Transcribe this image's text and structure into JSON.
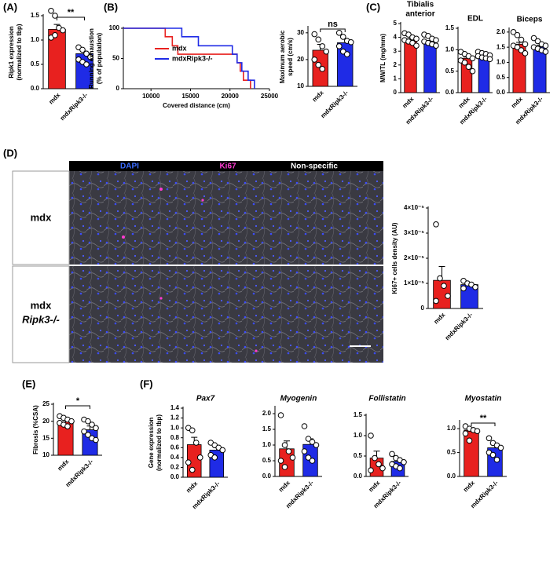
{
  "panels": [
    "(A)",
    "(B)",
    "(C)",
    "(D)",
    "(E)",
    "(F)"
  ],
  "micrograph": {
    "channels": [
      "DAPI",
      "Ki67",
      "Non-specific"
    ],
    "rows": [
      [
        "mdx"
      ],
      [
        "mdx",
        "Ripk3-/-"
      ]
    ]
  },
  "chart_data": [
    {
      "type": "bar",
      "ylabel": [
        "Ripk1 expression",
        "(normalized to tbp)"
      ],
      "categories": [
        "mdx",
        "mdxRipk3-/-"
      ],
      "colors": [
        "#e8211f",
        "#1f2be6"
      ],
      "values": [
        1.22,
        0.72
      ],
      "errors": [
        0.1,
        0.05
      ],
      "points": [
        [
          1.6,
          1.5,
          1.25,
          1.2,
          1.05,
          1.1
        ],
        [
          0.85,
          0.8,
          0.72,
          0.65,
          0.6,
          0.55,
          0.5
        ]
      ],
      "ylim": [
        0,
        1.5
      ],
      "yticks": [
        {
          "value": 0,
          "label": "0.0"
        },
        0.5,
        {
          "value": 1,
          "label": "1.0"
        },
        1.5
      ],
      "significance": "**"
    },
    {
      "type": "line",
      "ylabel": [
        "Running exhaustion",
        "(% of population)"
      ],
      "xlabel": "Covered distance (cm)",
      "xlim": [
        6500,
        25000
      ],
      "xticks": [
        10000,
        15000,
        20000,
        25000
      ],
      "ylim": [
        0,
        100
      ],
      "yticks": [
        0,
        50,
        100
      ],
      "series": [
        {
          "name": "mdx",
          "color": "#e8211f",
          "x": [
            6500,
            11800,
            11800,
            12700,
            12700,
            13400,
            13400,
            20900,
            20900,
            21300,
            21300,
            21700,
            21700,
            22600,
            22600
          ],
          "values": [
            100,
            100,
            86,
            86,
            71,
            71,
            57,
            57,
            43,
            43,
            29,
            29,
            14,
            14,
            0
          ]
        },
        {
          "name": "mdxRipk3-/-",
          "color": "#1f2be6",
          "x": [
            6500,
            13900,
            13900,
            16000,
            16000,
            20300,
            20300,
            20900,
            20900,
            21500,
            21500,
            22300,
            22300,
            23100,
            23100
          ],
          "values": [
            100,
            100,
            86,
            86,
            71,
            71,
            57,
            57,
            43,
            43,
            29,
            29,
            14,
            14,
            0
          ]
        }
      ]
    },
    {
      "type": "bar",
      "ylabel": [
        "Maximum aerobic",
        "speed (cm/s)"
      ],
      "categories": [
        "mdx",
        "mdxRipk3-/-"
      ],
      "colors": [
        "#e8211f",
        "#1f2be6"
      ],
      "values": [
        23.5,
        26.3
      ],
      "errors": [
        2.2,
        1.3
      ],
      "points": [
        [
          29.5,
          27.5,
          25,
          23,
          20,
          18,
          16.5
        ],
        [
          30,
          28.5,
          27,
          26.5,
          25,
          23,
          22
        ]
      ],
      "ylim": [
        10,
        32
      ],
      "yticks": [
        10,
        20,
        30
      ],
      "significance": "ns"
    },
    {
      "type": "bar",
      "title": [
        "Tibialis",
        "anterior"
      ],
      "ylabel": [
        "MW/TL (mg/mm)"
      ],
      "categories": [
        "mdx",
        "mdxRipk3-/-"
      ],
      "colors": [
        "#e8211f",
        "#1f2be6"
      ],
      "values": [
        3.8,
        3.7
      ],
      "errors": [
        0.1,
        0.08
      ],
      "points": [
        [
          4.3,
          4.2,
          4.0,
          3.9,
          3.8,
          3.7,
          3.6,
          3.4
        ],
        [
          4.2,
          4.1,
          3.9,
          3.8,
          3.7,
          3.6,
          3.5,
          3.4
        ]
      ],
      "ylim": [
        0,
        5
      ],
      "yticks": [
        0,
        1,
        2,
        3,
        4,
        5
      ]
    },
    {
      "type": "bar",
      "title": [
        "EDL"
      ],
      "categories": [
        "mdx",
        "mdxRipk3-/-"
      ],
      "colors": [
        "#e8211f",
        "#1f2be6"
      ],
      "values": [
        0.8,
        0.86
      ],
      "errors": [
        0.03,
        0.03
      ],
      "points": [
        [
          0.95,
          0.9,
          0.85,
          0.8,
          0.75,
          0.7,
          0.6,
          0.5
        ],
        [
          0.95,
          0.92,
          0.9,
          0.87,
          0.85,
          0.82,
          0.8,
          0.78
        ]
      ],
      "ylim": [
        0,
        1.5
      ],
      "yticks": [
        {
          "value": 0,
          "label": "0.0"
        },
        0.5,
        {
          "value": 1,
          "label": "1.0"
        },
        1.5
      ]
    },
    {
      "type": "bar",
      "title": [
        "Biceps"
      ],
      "categories": [
        "mdx",
        "mdxRipk3-/-"
      ],
      "colors": [
        "#e8211f",
        "#1f2be6"
      ],
      "values": [
        1.6,
        1.52
      ],
      "errors": [
        0.06,
        0.04
      ],
      "points": [
        [
          2.0,
          1.9,
          1.75,
          1.6,
          1.55,
          1.5,
          1.4,
          1.3
        ],
        [
          1.8,
          1.7,
          1.6,
          1.55,
          1.5,
          1.45,
          1.4,
          1.35
        ]
      ],
      "ylim": [
        0,
        2.1
      ],
      "yticks": [
        {
          "value": 0,
          "label": "0.0"
        },
        0.5,
        {
          "value": 1,
          "label": "1.0"
        },
        1.5,
        {
          "value": 2,
          "label": "2.0"
        }
      ]
    },
    {
      "type": "bar",
      "ylabel": [
        "Ki67+ cells density (AU)"
      ],
      "categories": [
        "mdx",
        "mdxRipk3-/-"
      ],
      "colors": [
        "#e8211f",
        "#1f2be6"
      ],
      "values": [
        1.12e-05,
        9.5e-06
      ],
      "errors": [
        5.5e-06,
        8e-07
      ],
      "points": [
        [
          3.35e-05,
          1.2e-05,
          9e-06,
          5e-06,
          3e-06
        ],
        [
          1.1e-05,
          1e-05,
          9.5e-06,
          8.5e-06,
          8e-06
        ]
      ],
      "ylim": [
        0,
        4e-05
      ],
      "yticks": [
        0,
        {
          "value": 1e-05,
          "label": "1×10⁻⁵"
        },
        {
          "value": 2e-05,
          "label": "2×10⁻⁵"
        },
        {
          "value": 3e-05,
          "label": "3×10⁻⁵"
        },
        {
          "value": 4e-05,
          "label": "4×10⁻⁵"
        }
      ]
    },
    {
      "type": "bar",
      "ylabel": [
        "Fibrosis (%CSA)"
      ],
      "categories": [
        "mdx",
        "mdxRipk3-/-"
      ],
      "colors": [
        "#e8211f",
        "#1f2be6"
      ],
      "values": [
        19.8,
        17.5
      ],
      "errors": [
        0.5,
        1.1
      ],
      "points": [
        [
          21.5,
          21,
          20.5,
          20,
          19.5,
          19,
          18.5
        ],
        [
          20.5,
          20,
          19,
          18,
          17,
          16,
          15,
          14.5
        ]
      ],
      "ylim": [
        10,
        25
      ],
      "yticks": [
        10,
        15,
        20,
        25
      ],
      "significance": "*"
    },
    {
      "type": "bar",
      "title": [
        "Pax7"
      ],
      "ylabel": [
        "Gene expression",
        "(normalized to tbp)"
      ],
      "categories": [
        "mdx",
        "mdxRipk3-/-"
      ],
      "colors": [
        "#e8211f",
        "#1f2be6"
      ],
      "values": [
        0.66,
        0.55
      ],
      "errors": [
        0.15,
        0.05
      ],
      "points": [
        [
          1.0,
          0.95,
          0.7,
          0.4,
          0.3,
          0.15
        ],
        [
          0.7,
          0.65,
          0.6,
          0.55,
          0.45,
          0.4
        ]
      ],
      "ylim": [
        0,
        1.4
      ],
      "yticks": [
        {
          "value": 0,
          "label": "0.0"
        },
        0.2,
        0.4,
        0.6,
        0.8,
        {
          "value": 1,
          "label": "1.0"
        },
        1.2,
        1.4
      ]
    },
    {
      "type": "bar",
      "title": [
        "Myogenin"
      ],
      "categories": [
        "mdx",
        "mdxRipk3-/-"
      ],
      "colors": [
        "#e8211f",
        "#1f2be6"
      ],
      "values": [
        0.88,
        1.02
      ],
      "errors": [
        0.25,
        0.18
      ],
      "points": [
        [
          1.95,
          1.0,
          0.8,
          0.6,
          0.5,
          0.3
        ],
        [
          1.6,
          1.2,
          1.1,
          1.0,
          0.8,
          0.6,
          0.5
        ]
      ],
      "ylim": [
        0,
        2.2
      ],
      "yticks": [
        {
          "value": 0,
          "label": "0.0"
        },
        0.5,
        {
          "value": 1,
          "label": "1.0"
        },
        1.5,
        {
          "value": 2,
          "label": "2.0"
        }
      ]
    },
    {
      "type": "bar",
      "title": [
        "Follistatin"
      ],
      "categories": [
        "mdx",
        "mdxRipk3-/-"
      ],
      "colors": [
        "#e8211f",
        "#1f2be6"
      ],
      "values": [
        0.45,
        0.37
      ],
      "errors": [
        0.17,
        0.05
      ],
      "points": [
        [
          1.0,
          0.45,
          0.3,
          0.2,
          0.15
        ],
        [
          0.55,
          0.45,
          0.4,
          0.35,
          0.3,
          0.25,
          0.2
        ]
      ],
      "ylim": [
        0,
        1.5
      ],
      "yticks": [
        {
          "value": 0,
          "label": "0.0"
        },
        0.5,
        {
          "value": 1,
          "label": "1.0"
        },
        1.5
      ]
    },
    {
      "type": "bar",
      "title": [
        "Myostatin"
      ],
      "categories": [
        "mdx",
        "mdxRipk3-/-"
      ],
      "colors": [
        "#e8211f",
        "#1f2be6"
      ],
      "values": [
        0.97,
        0.6
      ],
      "errors": [
        0.05,
        0.07
      ],
      "points": [
        [
          1.05,
          1.0,
          0.97,
          0.95,
          0.9,
          0.75
        ],
        [
          0.8,
          0.7,
          0.65,
          0.6,
          0.5,
          0.45,
          0.35
        ]
      ],
      "ylim": [
        0,
        1.15
      ],
      "yticks": [
        {
          "value": 0,
          "label": "0.0"
        },
        0.5,
        {
          "value": 1,
          "label": "1.0"
        }
      ],
      "significance": "**"
    }
  ]
}
